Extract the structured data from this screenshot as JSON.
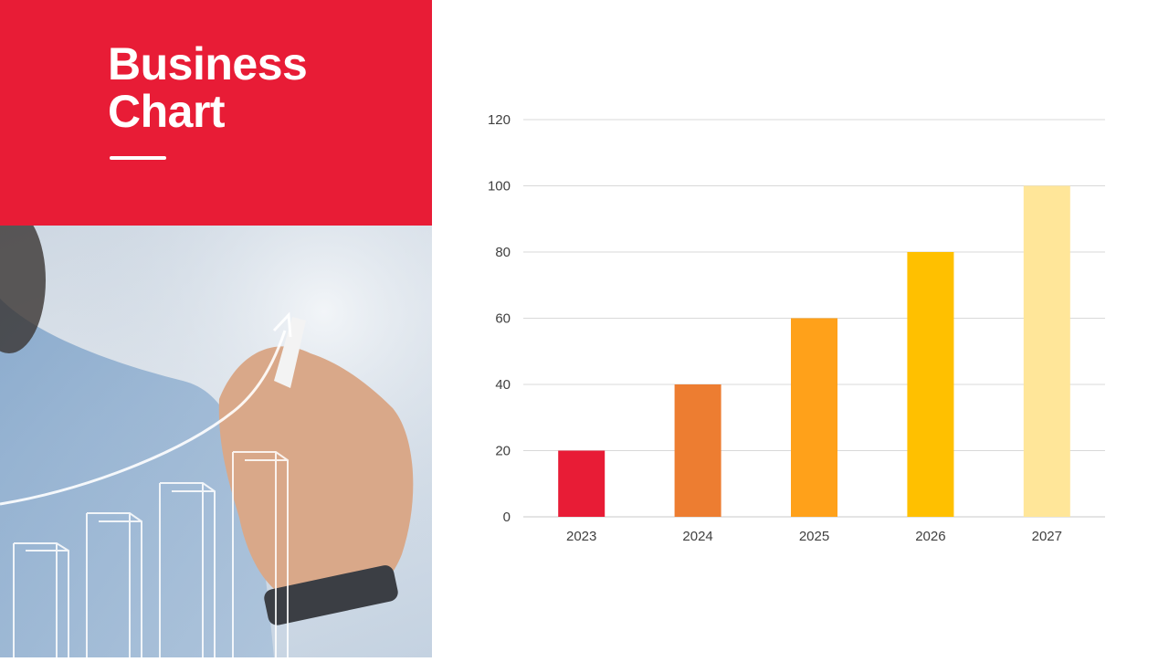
{
  "slide": {
    "title_line1": "Business",
    "title_line2": "Chart",
    "colors": {
      "title_panel": "#E81C36",
      "photo_tint": "#C4D2E1"
    },
    "photo_description_icon": "hand-drawing-growth-chart-photo"
  },
  "chart_data": {
    "type": "bar",
    "title": "",
    "xlabel": "",
    "ylabel": "",
    "categories": [
      "2023",
      "2024",
      "2025",
      "2026",
      "2027"
    ],
    "values": [
      20,
      40,
      60,
      80,
      100
    ],
    "bar_colors": [
      "#E81C36",
      "#ED7D31",
      "#FFA11A",
      "#FFC000",
      "#FFE699"
    ],
    "ylim": [
      0,
      120
    ],
    "yticks": [
      0,
      20,
      40,
      60,
      80,
      100,
      120
    ],
    "grid": true,
    "legend": "none"
  }
}
